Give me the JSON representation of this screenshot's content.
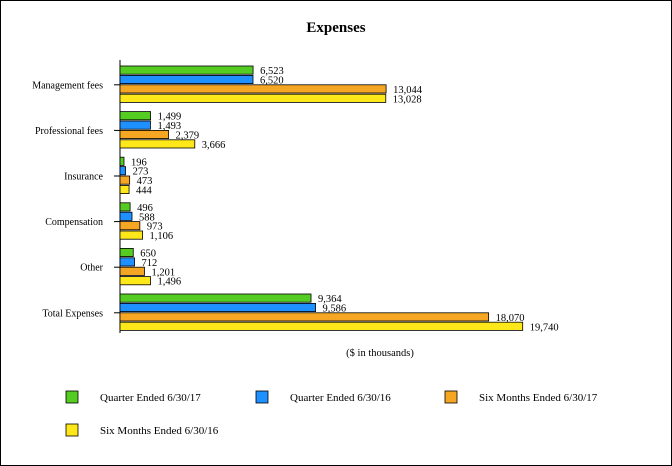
{
  "chart_data": {
    "type": "bar",
    "orientation": "horizontal",
    "title": "Expenses",
    "xlabel": "($ in thousands)",
    "ylabel": "",
    "xlim": [
      0,
      20000
    ],
    "grid": false,
    "legend_position": "bottom",
    "categories": [
      "Management fees",
      "Professional fees",
      "Insurance",
      "Compensation",
      "Other",
      "Total Expenses"
    ],
    "series": [
      {
        "name": "Quarter Ended 6/30/17",
        "color": "#55cc22",
        "values": [
          6523,
          1499,
          196,
          496,
          650,
          9364
        ],
        "labels": [
          "6,523",
          "1,499",
          "196",
          "496",
          "650",
          "9,364"
        ]
      },
      {
        "name": "Quarter Ended 6/30/16",
        "color": "#1e90ff",
        "values": [
          6520,
          1493,
          273,
          588,
          712,
          9586
        ],
        "labels": [
          "6,520",
          "1,493",
          "273",
          "588",
          "712",
          "9,586"
        ]
      },
      {
        "name": "Six Months Ended 6/30/17",
        "color": "#f5a623",
        "values": [
          13044,
          2379,
          473,
          973,
          1201,
          18070
        ],
        "labels": [
          "13,044",
          "2,379",
          "473",
          "973",
          "1,201",
          "18,070"
        ]
      },
      {
        "name": "Six Months Ended 6/30/16",
        "color": "#ffe81a",
        "values": [
          13028,
          3666,
          444,
          1106,
          1496,
          19740
        ],
        "labels": [
          "13,028",
          "3,666",
          "444",
          "1,106",
          "1,496",
          "19,740"
        ]
      }
    ]
  }
}
